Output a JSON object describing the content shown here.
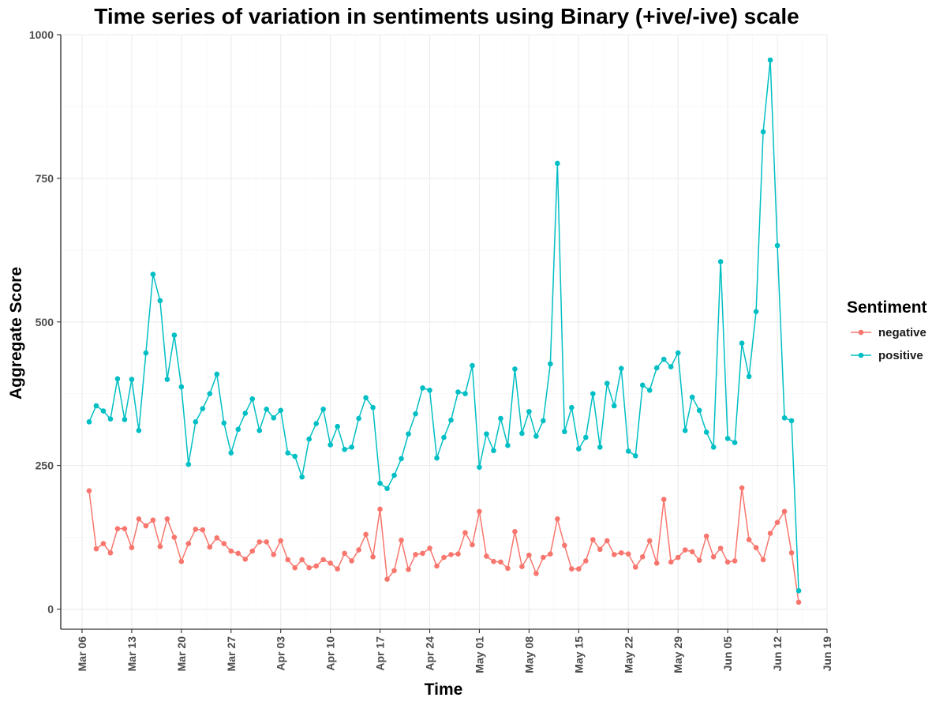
{
  "chart_data": {
    "type": "line",
    "title": "Time series of variation in sentiments using Binary (+ive/-ive) scale",
    "xlabel": "Time",
    "ylabel": "Aggregate Score",
    "x_start": "2017-03-07",
    "x_step_days": 1,
    "xlim": [
      "2017-03-03",
      "2017-06-19"
    ],
    "ylim": [
      -35,
      1000
    ],
    "yticks": [
      0,
      250,
      500,
      750,
      1000
    ],
    "xtick_labels": [
      "Mar 06",
      "Mar 13",
      "Mar 20",
      "Mar 27",
      "Apr 03",
      "Apr 10",
      "Apr 17",
      "Apr 24",
      "May 01",
      "May 08",
      "May 15",
      "May 22",
      "May 29",
      "Jun 05",
      "Jun 12",
      "Jun 19"
    ],
    "xtick_dates": [
      "2017-03-06",
      "2017-03-13",
      "2017-03-20",
      "2017-03-27",
      "2017-04-03",
      "2017-04-10",
      "2017-04-17",
      "2017-04-24",
      "2017-05-01",
      "2017-05-08",
      "2017-05-15",
      "2017-05-22",
      "2017-05-29",
      "2017-06-05",
      "2017-06-12",
      "2017-06-19"
    ],
    "grid": true,
    "legend": {
      "title": "Sentiment",
      "position": "right"
    },
    "series": [
      {
        "name": "negative",
        "color": "#F8766D",
        "values": [
          206,
          105,
          114,
          98,
          140,
          140,
          107,
          157,
          145,
          155,
          109,
          157,
          125,
          83,
          114,
          139,
          138,
          108,
          124,
          114,
          101,
          97,
          87,
          101,
          117,
          117,
          95,
          119,
          86,
          72,
          86,
          72,
          75,
          86,
          80,
          70,
          97,
          84,
          103,
          130,
          91,
          174,
          52,
          67,
          120,
          69,
          95,
          97,
          106,
          75,
          90,
          95,
          96,
          133,
          112,
          170,
          92,
          83,
          82,
          71,
          135,
          74,
          94,
          62,
          90,
          96,
          157,
          111,
          70,
          70,
          84,
          121,
          104,
          119,
          95,
          98,
          96,
          73,
          91,
          119,
          80,
          191,
          82,
          90,
          103,
          100,
          85,
          127,
          91,
          106,
          82,
          84,
          211,
          121,
          107,
          86,
          132,
          151,
          170,
          98,
          12
        ]
      },
      {
        "name": "positive",
        "color": "#00BFC4",
        "values": [
          326,
          354,
          345,
          331,
          401,
          330,
          400,
          311,
          446,
          583,
          537,
          400,
          477,
          387,
          252,
          326,
          349,
          375,
          409,
          324,
          272,
          313,
          341,
          366,
          311,
          348,
          333,
          346,
          272,
          266,
          230,
          296,
          323,
          348,
          286,
          318,
          278,
          282,
          332,
          368,
          351,
          219,
          210,
          233,
          262,
          305,
          340,
          385,
          381,
          263,
          299,
          329,
          378,
          375,
          424,
          247,
          305,
          276,
          332,
          285,
          418,
          306,
          344,
          301,
          328,
          427,
          776,
          309,
          351,
          279,
          299,
          375,
          282,
          393,
          354,
          419,
          275,
          267,
          390,
          381,
          420,
          435,
          422,
          446,
          311,
          369,
          346,
          308,
          282,
          605,
          297,
          290,
          463,
          405,
          518,
          831,
          956,
          633,
          333,
          328,
          32
        ]
      }
    ]
  }
}
